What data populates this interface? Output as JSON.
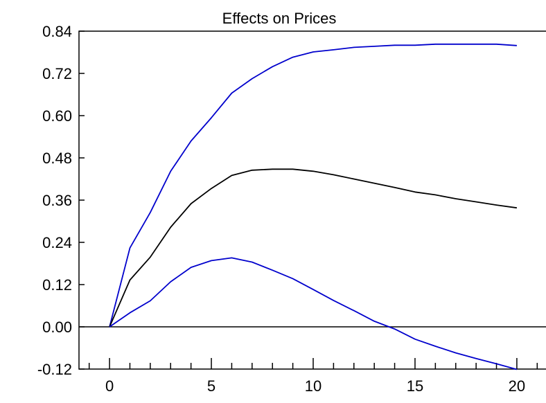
{
  "chart_data": {
    "type": "line",
    "title": "Effects on Prices",
    "xlabel": "",
    "ylabel": "",
    "xlim": [
      -1.5,
      21.5
    ],
    "ylim": [
      -0.12,
      0.84
    ],
    "xticks": [
      0,
      5,
      10,
      15,
      20
    ],
    "xtick_labels": [
      "0",
      "5",
      "10",
      "15",
      "20"
    ],
    "yticks": [
      -0.12,
      0,
      0.12,
      0.24,
      0.36,
      0.48,
      0.6,
      0.72,
      0.84
    ],
    "ytick_labels": [
      "-0.12",
      "0.00",
      "0.12",
      "0.24",
      "0.36",
      "0.48",
      "0.60",
      "0.72",
      "0.84"
    ],
    "zero_line": true,
    "grid": false,
    "x": [
      0,
      1,
      2,
      3,
      4,
      5,
      6,
      7,
      8,
      9,
      10,
      11,
      12,
      13,
      14,
      15,
      16,
      17,
      18,
      19,
      20
    ],
    "series": [
      {
        "color": "#0000cc",
        "values": [
          0,
          0.224,
          0.325,
          0.442,
          0.528,
          0.594,
          0.664,
          0.705,
          0.739,
          0.766,
          0.781,
          0.787,
          0.794,
          0.797,
          0.8,
          0.8,
          0.803,
          0.803,
          0.803,
          0.803,
          0.799
        ]
      },
      {
        "color": "#000000",
        "values": [
          0,
          0.133,
          0.198,
          0.283,
          0.35,
          0.393,
          0.43,
          0.445,
          0.448,
          0.448,
          0.442,
          0.432,
          0.42,
          0.408,
          0.396,
          0.383,
          0.375,
          0.364,
          0.355,
          0.346,
          0.338
        ]
      },
      {
        "color": "#0000cc",
        "values": [
          0,
          0.04,
          0.074,
          0.128,
          0.169,
          0.188,
          0.196,
          0.184,
          0.161,
          0.137,
          0.106,
          0.075,
          0.046,
          0.016,
          -0.006,
          -0.035,
          -0.055,
          -0.074,
          -0.09,
          -0.105,
          -0.121
        ]
      }
    ]
  }
}
